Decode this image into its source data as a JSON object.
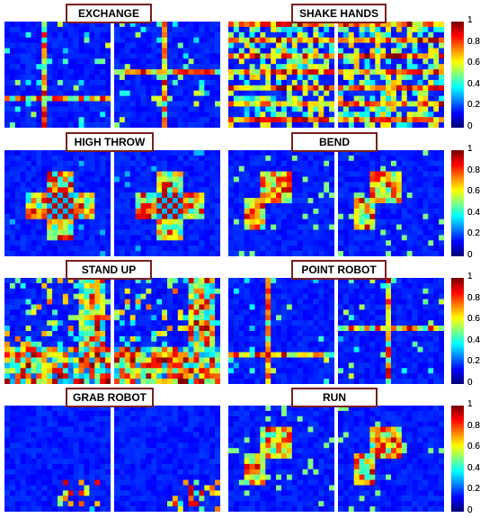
{
  "chart_data": [
    {
      "type": "heatmap",
      "title": "EXCHANGE",
      "colorbar": {
        "range": [
          0,
          1
        ],
        "ticks": [
          "0",
          "0.2",
          "0.4",
          "0.6",
          "0.8",
          "1"
        ]
      },
      "pattern": "cross",
      "intensity": "medium"
    },
    {
      "type": "heatmap",
      "title": "SHAKE HANDS",
      "colorbar": {
        "range": [
          0,
          1
        ],
        "ticks": [
          "0",
          "0.2",
          "0.4",
          "0.6",
          "0.8",
          "1"
        ]
      },
      "pattern": "dense-rows",
      "intensity": "high"
    },
    {
      "type": "heatmap",
      "title": "HIGH THROW",
      "colorbar": {
        "range": [
          0,
          1
        ],
        "ticks": [
          "0",
          "0.2",
          "0.4",
          "0.6",
          "0.8",
          "1"
        ]
      },
      "pattern": "cross-center",
      "intensity": "high"
    },
    {
      "type": "heatmap",
      "title": "BEND",
      "colorbar": {
        "range": [
          0,
          1
        ],
        "ticks": [
          "0",
          "0.2",
          "0.4",
          "0.6",
          "0.8",
          "1"
        ]
      },
      "pattern": "blocks",
      "intensity": "medium"
    },
    {
      "type": "heatmap",
      "title": "STAND UP",
      "colorbar": {
        "range": [
          0,
          1
        ],
        "ticks": [
          "0",
          "0.2",
          "0.4",
          "0.6",
          "0.8",
          "1"
        ]
      },
      "pattern": "dense-bottom",
      "intensity": "high"
    },
    {
      "type": "heatmap",
      "title": "POINT ROBOT",
      "colorbar": {
        "range": [
          0,
          1
        ],
        "ticks": [
          "0",
          "0.2",
          "0.4",
          "0.6",
          "0.8",
          "1"
        ]
      },
      "pattern": "cross",
      "intensity": "high"
    },
    {
      "type": "heatmap",
      "title": "GRAB ROBOT",
      "colorbar": {
        "range": [
          0,
          1
        ],
        "ticks": [
          "0",
          "0.2",
          "0.4",
          "0.6",
          "0.8",
          "1"
        ]
      },
      "pattern": "sparse-bottom",
      "intensity": "low"
    },
    {
      "type": "heatmap",
      "title": "RUN",
      "colorbar": {
        "range": [
          0,
          1
        ],
        "ticks": [
          "0",
          "0.2",
          "0.4",
          "0.6",
          "0.8",
          "1"
        ]
      },
      "pattern": "blocks",
      "intensity": "medium"
    }
  ]
}
